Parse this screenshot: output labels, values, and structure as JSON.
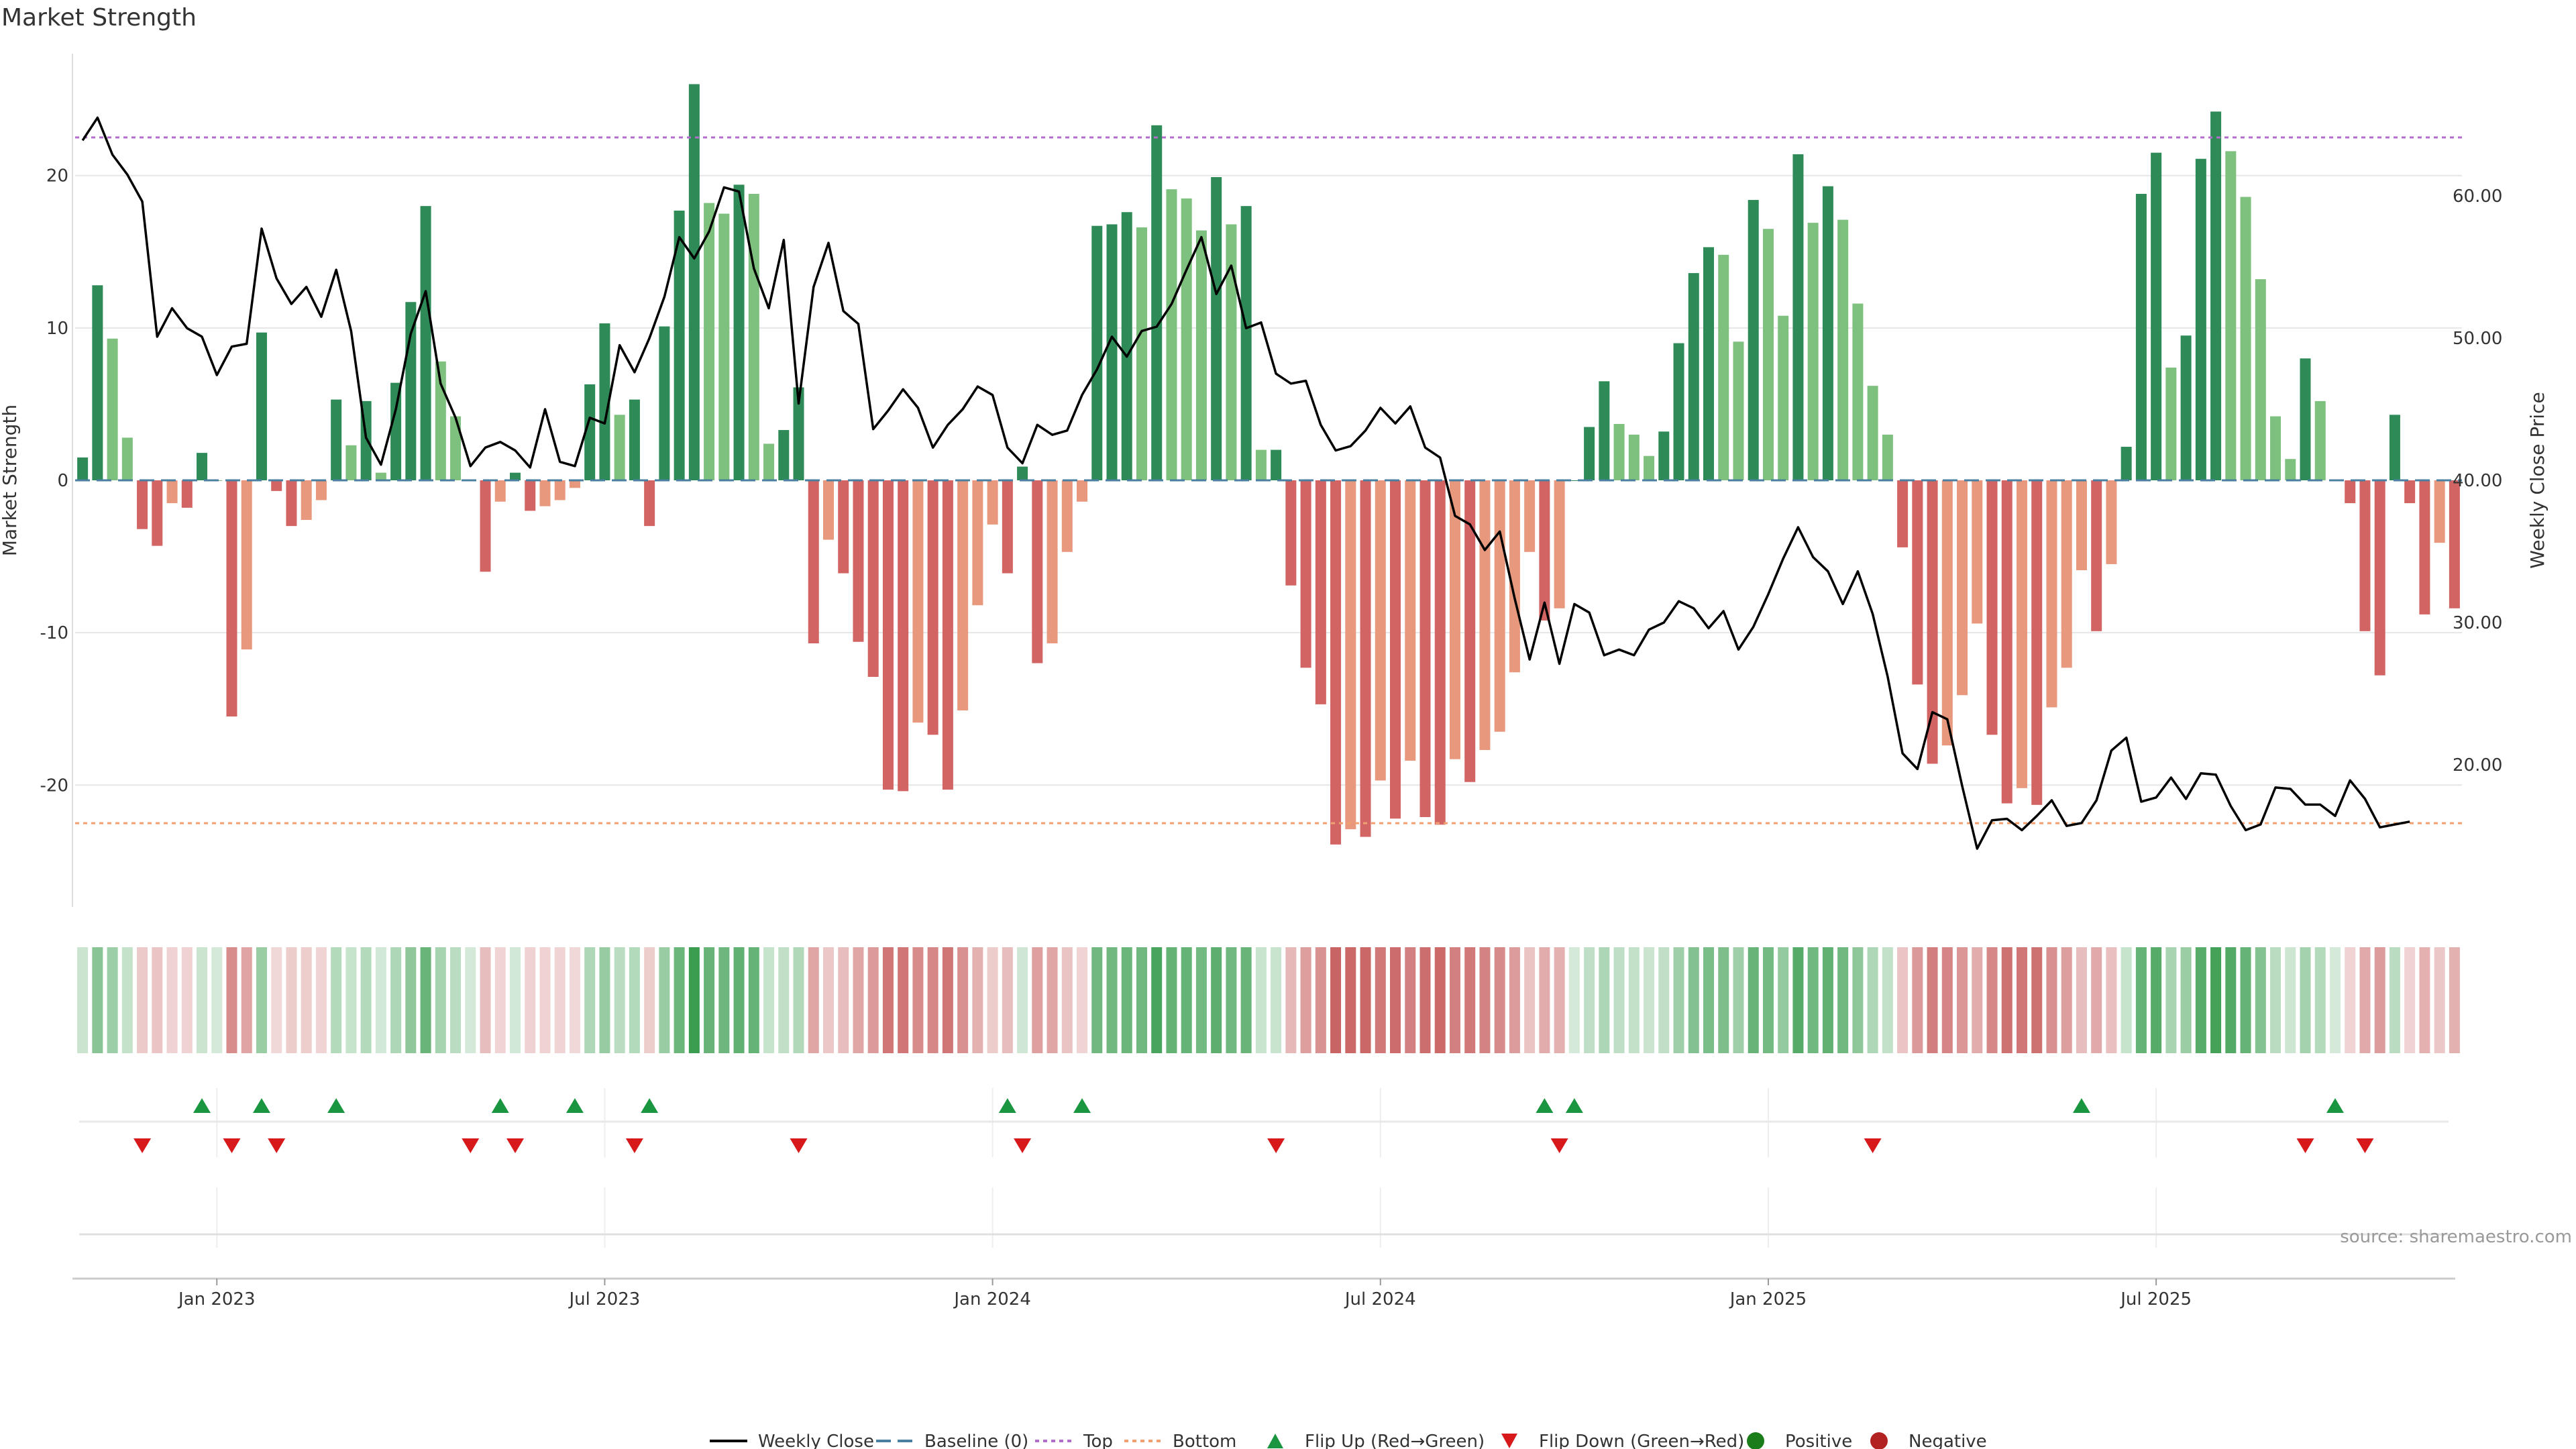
{
  "chart_data": {
    "type": "bar",
    "title": "Market Strength",
    "ylabel_left": "Market Strength",
    "ylabel_right": "Weekly Close Price",
    "source": "source: sharemaestro.com",
    "left_ylim": [
      -28,
      28
    ],
    "right_ylim": [
      10,
      70
    ],
    "left_ticks": [
      {
        "value": 20,
        "label": "20"
      },
      {
        "value": 10,
        "label": "10"
      },
      {
        "value": 0,
        "label": "0"
      },
      {
        "value": -10,
        "label": "-10"
      },
      {
        "value": -20,
        "label": "-20"
      }
    ],
    "right_ticks": [
      {
        "value": 60,
        "label": "60.00"
      },
      {
        "value": 50,
        "label": "50.00"
      },
      {
        "value": 40,
        "label": "40.00"
      },
      {
        "value": 30,
        "label": "30.00"
      },
      {
        "value": 20,
        "label": "20.00"
      }
    ],
    "top_line": 22.5,
    "bottom_line": -22.5,
    "x_ticks": [
      {
        "week": 9.5,
        "label": "Jan 2023"
      },
      {
        "week": 35.5,
        "label": "Jul 2023"
      },
      {
        "week": 61.5,
        "label": "Jan 2024"
      },
      {
        "week": 87.5,
        "label": "Jul 2024"
      },
      {
        "week": 113.5,
        "label": "Jan 2025"
      },
      {
        "week": 139.5,
        "label": "Jul 2025"
      }
    ],
    "strength": [
      1.5,
      12.8,
      9.3,
      2.8,
      -3.2,
      -4.3,
      -1.5,
      -1.8,
      1.8,
      0,
      -15.5,
      -11.1,
      9.7,
      -0.7,
      -3.0,
      -2.6,
      -1.3,
      5.3,
      2.3,
      5.2,
      0.5,
      6.4,
      11.7,
      18.0,
      7.8,
      4.2,
      0,
      -6.0,
      -1.4,
      0.5,
      -2.0,
      -1.7,
      -1.3,
      -0.5,
      6.3,
      10.3,
      4.3,
      5.3,
      -3.0,
      10.1,
      17.7,
      26.0,
      18.2,
      17.5,
      19.4,
      18.8,
      2.4,
      3.3,
      6.1,
      -10.7,
      -3.9,
      -6.1,
      -10.6,
      -12.9,
      -20.3,
      -20.4,
      -15.9,
      -16.7,
      -20.3,
      -15.1,
      -8.2,
      -2.9,
      -6.1,
      0.9,
      -12.0,
      -10.7,
      -4.7,
      -1.4,
      16.7,
      16.8,
      17.6,
      16.6,
      23.3,
      19.1,
      18.5,
      16.4,
      19.9,
      16.8,
      18.0,
      2.0,
      2.0,
      -6.9,
      -12.3,
      -14.7,
      -23.9,
      -22.9,
      -23.4,
      -19.7,
      -22.2,
      -18.4,
      -22.1,
      -22.6,
      -18.3,
      -19.8,
      -17.7,
      -16.5,
      -12.6,
      -4.7,
      -9.2,
      -8.4,
      0,
      3.5,
      6.5,
      3.7,
      3.0,
      1.6,
      3.2,
      9.0,
      13.6,
      15.3,
      14.8,
      9.1,
      18.4,
      16.5,
      10.8,
      21.4,
      16.9,
      19.3,
      17.1,
      11.6,
      6.2,
      3.0,
      -4.4,
      -13.4,
      -18.6,
      -17.4,
      -14.1,
      -9.4,
      -16.7,
      -21.2,
      -20.2,
      -21.3,
      -14.9,
      -12.3,
      -5.9,
      -9.9,
      -5.5,
      2.2,
      18.8,
      21.5,
      7.4,
      9.5,
      21.1,
      24.2,
      21.6,
      18.6,
      13.2,
      4.2,
      1.4,
      8.0,
      5.2,
      0,
      -1.5,
      -9.9,
      -12.8,
      4.3,
      -1.5,
      -8.8,
      -4.1,
      -8.4
    ],
    "weekly_close": [
      63.9,
      65.5,
      62.9,
      61.5,
      59.6,
      50.1,
      52.1,
      50.7,
      50.1,
      47.4,
      49.4,
      49.6,
      57.7,
      54.2,
      52.4,
      53.6,
      51.5,
      54.8,
      50.5,
      43.0,
      41.1,
      45.0,
      50.3,
      53.3,
      46.8,
      44.4,
      41.0,
      42.3,
      42.7,
      42.1,
      40.9,
      45.0,
      41.3,
      41.0,
      44.4,
      44.0,
      49.5,
      47.6,
      50.0,
      52.9,
      57.1,
      55.6,
      57.5,
      60.6,
      60.3,
      54.9,
      52.1,
      56.9,
      45.4,
      53.6,
      56.7,
      51.9,
      51.0,
      43.6,
      44.9,
      46.4,
      45.1,
      42.3,
      43.9,
      45.0,
      46.6,
      46.0,
      42.3,
      41.2,
      43.9,
      43.2,
      43.5,
      46.0,
      47.8,
      50.1,
      48.7,
      50.5,
      50.8,
      52.4,
      54.8,
      57.1,
      53.1,
      55.1,
      50.7,
      51.1,
      47.5,
      46.8,
      47.0,
      43.9,
      42.1,
      42.4,
      43.5,
      45.1,
      44.0,
      45.2,
      42.3,
      41.6,
      37.5,
      36.9,
      35.1,
      36.4,
      31.7,
      27.4,
      31.4,
      27.1,
      31.3,
      30.7,
      27.7,
      28.1,
      27.7,
      29.5,
      30.0,
      31.5,
      31.0,
      29.6,
      30.8,
      28.1,
      29.7,
      32.0,
      34.5,
      36.7,
      34.6,
      33.6,
      31.3,
      33.6,
      30.6,
      26.2,
      20.8,
      19.7,
      23.7,
      23.2,
      18.5,
      14.1,
      16.1,
      16.2,
      15.4,
      16.4,
      17.5,
      15.7,
      15.9,
      17.5,
      21.0,
      21.9,
      17.4,
      17.7,
      19.1,
      17.6,
      19.4,
      19.3,
      17.1,
      15.4,
      15.8,
      18.4,
      18.3,
      17.2,
      17.2,
      16.4,
      18.9,
      17.6,
      15.6,
      15.8,
      16.0
    ],
    "flip_up_weeks": [
      8,
      12,
      17,
      28,
      33,
      38,
      62,
      67,
      98,
      100,
      134,
      151
    ],
    "flip_down_weeks": [
      4,
      10,
      13,
      26,
      29,
      37,
      48,
      63,
      80,
      99,
      120,
      149,
      153
    ],
    "legend": [
      {
        "key": "weekly_close",
        "label": "Weekly Close"
      },
      {
        "key": "baseline",
        "label": "Baseline (0)"
      },
      {
        "key": "top",
        "label": "Top"
      },
      {
        "key": "bottom",
        "label": "Bottom"
      },
      {
        "key": "flip_up",
        "label": "Flip Up (Red→Green)"
      },
      {
        "key": "flip_down",
        "label": "Flip Down (Green→Red)"
      },
      {
        "key": "positive",
        "label": "Positive"
      },
      {
        "key": "negative",
        "label": "Negative"
      }
    ],
    "colors": {
      "pos_dark": "#2e8b57",
      "pos_light": "#7ec07e",
      "neg_dark": "#d26464",
      "neg_light": "#e8987c",
      "close_line": "#000000",
      "baseline": "#4a7fa0",
      "top": "#b06ec8",
      "bottom": "#f0a070",
      "flip_up": "#1a9641",
      "flip_down": "#d7191c",
      "positive": "#1a7d1a",
      "negative": "#b22222",
      "heat_pos": "#3a9d4f",
      "heat_neg": "#c65a5a",
      "grid": "#e6e6e6",
      "text": "#333333"
    }
  }
}
